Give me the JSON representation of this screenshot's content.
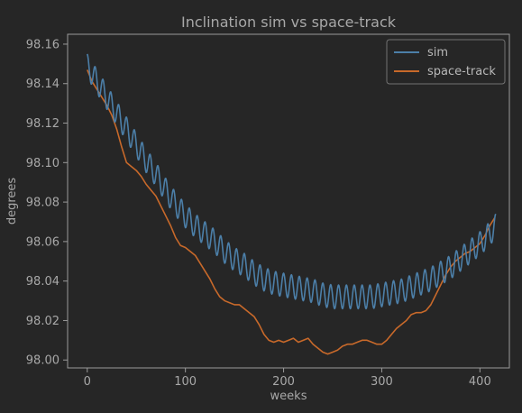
{
  "chart_data": {
    "type": "line",
    "title": "Inclination sim vs space-track",
    "xlabel": "weeks",
    "ylabel": "degrees",
    "xlim": [
      -20,
      430
    ],
    "ylim": [
      97.996,
      98.165
    ],
    "x_ticks": [
      0,
      100,
      200,
      300,
      400
    ],
    "y_ticks": [
      98.0,
      98.02,
      98.04,
      98.06,
      98.08,
      98.1,
      98.12,
      98.14,
      98.16
    ],
    "y_tick_labels": [
      "98.00",
      "98.02",
      "98.04",
      "98.06",
      "98.08",
      "98.10",
      "98.12",
      "98.14",
      "98.16"
    ],
    "grid": false,
    "legend_position": "top-right",
    "series": [
      {
        "name": "sim",
        "color": "#4c7fa8",
        "oscillation_amplitude": 0.006,
        "oscillation_period_weeks": 8,
        "trend": [
          [
            0,
            98.149
          ],
          [
            10,
            98.141
          ],
          [
            20,
            98.133
          ],
          [
            30,
            98.125
          ],
          [
            40,
            98.117
          ],
          [
            50,
            98.109
          ],
          [
            60,
            98.101
          ],
          [
            70,
            98.094
          ],
          [
            80,
            98.086
          ],
          [
            90,
            98.079
          ],
          [
            100,
            98.073
          ],
          [
            110,
            98.068
          ],
          [
            120,
            98.064
          ],
          [
            130,
            98.06
          ],
          [
            140,
            98.055
          ],
          [
            150,
            98.051
          ],
          [
            160,
            98.048
          ],
          [
            170,
            98.044
          ],
          [
            180,
            98.041
          ],
          [
            190,
            98.039
          ],
          [
            200,
            98.038
          ],
          [
            210,
            98.037
          ],
          [
            220,
            98.036
          ],
          [
            230,
            98.035
          ],
          [
            240,
            98.033
          ],
          [
            250,
            98.032
          ],
          [
            260,
            98.032
          ],
          [
            270,
            98.032
          ],
          [
            280,
            98.032
          ],
          [
            290,
            98.032
          ],
          [
            300,
            98.033
          ],
          [
            310,
            98.034
          ],
          [
            320,
            98.035
          ],
          [
            330,
            98.037
          ],
          [
            340,
            98.039
          ],
          [
            350,
            98.041
          ],
          [
            360,
            98.044
          ],
          [
            370,
            98.047
          ],
          [
            380,
            98.051
          ],
          [
            390,
            98.055
          ],
          [
            400,
            98.059
          ],
          [
            410,
            98.064
          ],
          [
            416,
            98.068
          ]
        ]
      },
      {
        "name": "space-track",
        "color": "#c8692a",
        "values": [
          [
            0,
            98.147
          ],
          [
            5,
            98.141
          ],
          [
            10,
            98.137
          ],
          [
            15,
            98.133
          ],
          [
            20,
            98.129
          ],
          [
            25,
            98.124
          ],
          [
            30,
            98.117
          ],
          [
            35,
            98.108
          ],
          [
            40,
            98.1
          ],
          [
            45,
            98.098
          ],
          [
            50,
            98.096
          ],
          [
            55,
            98.093
          ],
          [
            60,
            98.089
          ],
          [
            65,
            98.086
          ],
          [
            70,
            98.083
          ],
          [
            75,
            98.078
          ],
          [
            80,
            98.073
          ],
          [
            85,
            98.068
          ],
          [
            90,
            98.062
          ],
          [
            95,
            98.058
          ],
          [
            100,
            98.057
          ],
          [
            105,
            98.055
          ],
          [
            110,
            98.053
          ],
          [
            115,
            98.049
          ],
          [
            120,
            98.045
          ],
          [
            125,
            98.041
          ],
          [
            130,
            98.036
          ],
          [
            135,
            98.032
          ],
          [
            140,
            98.03
          ],
          [
            145,
            98.029
          ],
          [
            150,
            98.028
          ],
          [
            155,
            98.028
          ],
          [
            160,
            98.026
          ],
          [
            165,
            98.024
          ],
          [
            170,
            98.022
          ],
          [
            175,
            98.018
          ],
          [
            180,
            98.013
          ],
          [
            185,
            98.01
          ],
          [
            190,
            98.009
          ],
          [
            195,
            98.01
          ],
          [
            200,
            98.009
          ],
          [
            205,
            98.01
          ],
          [
            210,
            98.011
          ],
          [
            215,
            98.009
          ],
          [
            220,
            98.01
          ],
          [
            225,
            98.011
          ],
          [
            230,
            98.008
          ],
          [
            235,
            98.006
          ],
          [
            240,
            98.004
          ],
          [
            245,
            98.003
          ],
          [
            250,
            98.004
          ],
          [
            255,
            98.005
          ],
          [
            260,
            98.007
          ],
          [
            265,
            98.008
          ],
          [
            270,
            98.008
          ],
          [
            275,
            98.009
          ],
          [
            280,
            98.01
          ],
          [
            285,
            98.01
          ],
          [
            290,
            98.009
          ],
          [
            295,
            98.008
          ],
          [
            300,
            98.008
          ],
          [
            305,
            98.01
          ],
          [
            310,
            98.013
          ],
          [
            315,
            98.016
          ],
          [
            320,
            98.018
          ],
          [
            325,
            98.02
          ],
          [
            330,
            98.023
          ],
          [
            335,
            98.024
          ],
          [
            340,
            98.024
          ],
          [
            345,
            98.025
          ],
          [
            350,
            98.028
          ],
          [
            355,
            98.033
          ],
          [
            360,
            98.038
          ],
          [
            365,
            98.043
          ],
          [
            370,
            98.047
          ],
          [
            375,
            98.05
          ],
          [
            380,
            98.052
          ],
          [
            385,
            98.054
          ],
          [
            390,
            98.055
          ],
          [
            395,
            98.057
          ],
          [
            400,
            98.059
          ],
          [
            405,
            98.063
          ],
          [
            410,
            98.068
          ],
          [
            415,
            98.072
          ]
        ]
      }
    ]
  }
}
